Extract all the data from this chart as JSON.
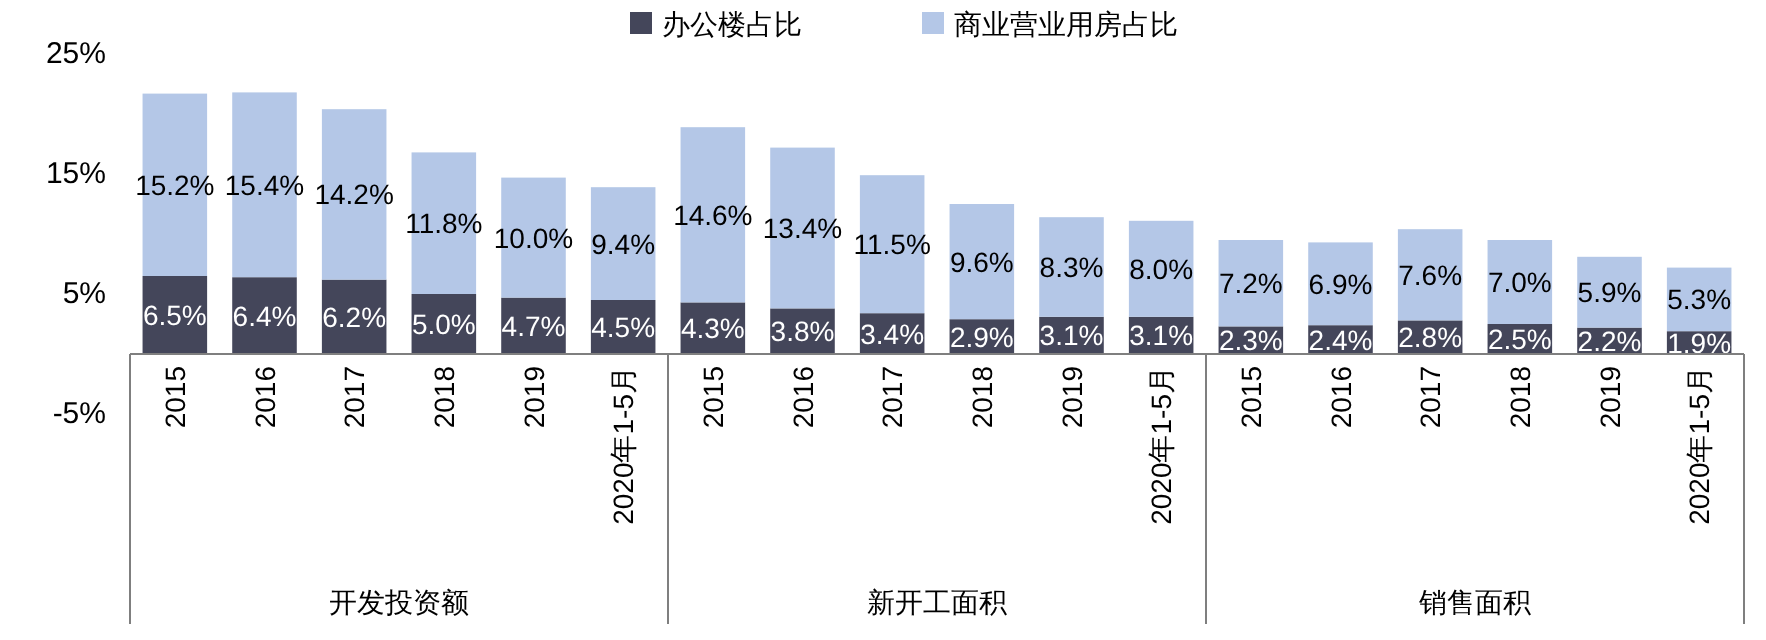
{
  "chart_data": {
    "type": "bar",
    "stacked": true,
    "legend": "top",
    "grid": false,
    "categories": [
      "2015",
      "2016",
      "2017",
      "2018",
      "2019",
      "2020年1-5月",
      "2015",
      "2016",
      "2017",
      "2018",
      "2019",
      "2020年1-5月",
      "2015",
      "2016",
      "2017",
      "2018",
      "2019",
      "2020年1-5月"
    ],
    "series": [
      {
        "name": "办公楼占比",
        "color": "#44465a",
        "values": [
          6.5,
          6.4,
          6.2,
          5.0,
          4.7,
          4.5,
          4.3,
          3.8,
          3.4,
          2.9,
          3.1,
          3.1,
          2.3,
          2.4,
          2.8,
          2.5,
          2.2,
          1.9
        ],
        "value_labels": [
          "6.5%",
          "6.4%",
          "6.2%",
          "5.0%",
          "4.7%",
          "4.5%",
          "4.3%",
          "3.8%",
          "3.4%",
          "2.9%",
          "3.1%",
          "3.1%",
          "2.3%",
          "2.4%",
          "2.8%",
          "2.5%",
          "2.2%",
          "1.9%"
        ]
      },
      {
        "name": "商业营业用房占比",
        "color": "#b4c7e7",
        "values": [
          15.2,
          15.4,
          14.2,
          11.8,
          10.0,
          9.4,
          14.6,
          13.4,
          11.5,
          9.6,
          8.3,
          8.0,
          7.2,
          6.9,
          7.6,
          7.0,
          5.9,
          5.3
        ],
        "value_labels": [
          "15.2%",
          "15.4%",
          "14.2%",
          "11.8%",
          "10.0%",
          "9.4%",
          "14.6%",
          "13.4%",
          "11.5%",
          "9.6%",
          "8.3%",
          "8.0%",
          "7.2%",
          "6.9%",
          "7.6%",
          "7.0%",
          "5.9%",
          "5.3%"
        ]
      }
    ],
    "ylim": [
      -5,
      25
    ],
    "yticks": [
      {
        "value": -5,
        "label": "-5%"
      },
      {
        "value": 5,
        "label": "5%"
      },
      {
        "value": 15,
        "label": "15%"
      },
      {
        "value": 25,
        "label": "25%"
      }
    ],
    "annotations": [
      "开发投资额",
      "新开工面积",
      "销售面积"
    ]
  }
}
